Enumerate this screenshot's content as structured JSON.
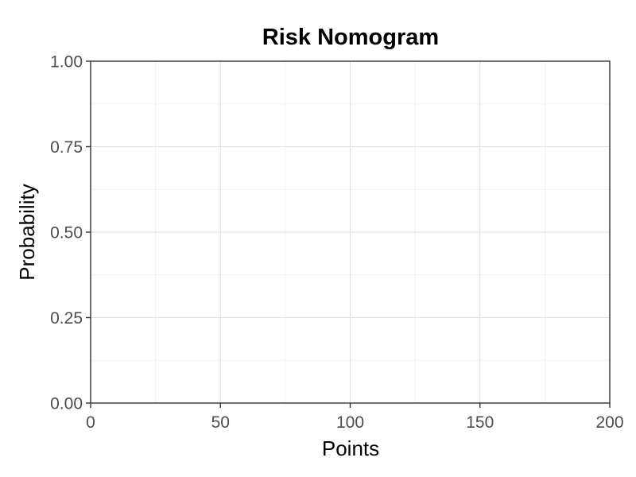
{
  "chart_data": {
    "type": "line",
    "title": "Risk Nomogram",
    "xlabel": "Points",
    "ylabel": "Probability",
    "xlim": [
      0,
      200
    ],
    "ylim": [
      0,
      1
    ],
    "x_ticks": [
      0,
      50,
      100,
      150,
      200
    ],
    "x_tick_labels": [
      "0",
      "50",
      "100",
      "150",
      "200"
    ],
    "y_ticks": [
      0,
      0.25,
      0.5,
      0.75,
      1
    ],
    "y_tick_labels": [
      "0.00",
      "0.25",
      "0.50",
      "0.75",
      "1.00"
    ],
    "x_minor_ticks": [
      25,
      75,
      125,
      175
    ],
    "y_minor_ticks": [
      0.125,
      0.375,
      0.625,
      0.875
    ],
    "grid": true,
    "series": []
  }
}
